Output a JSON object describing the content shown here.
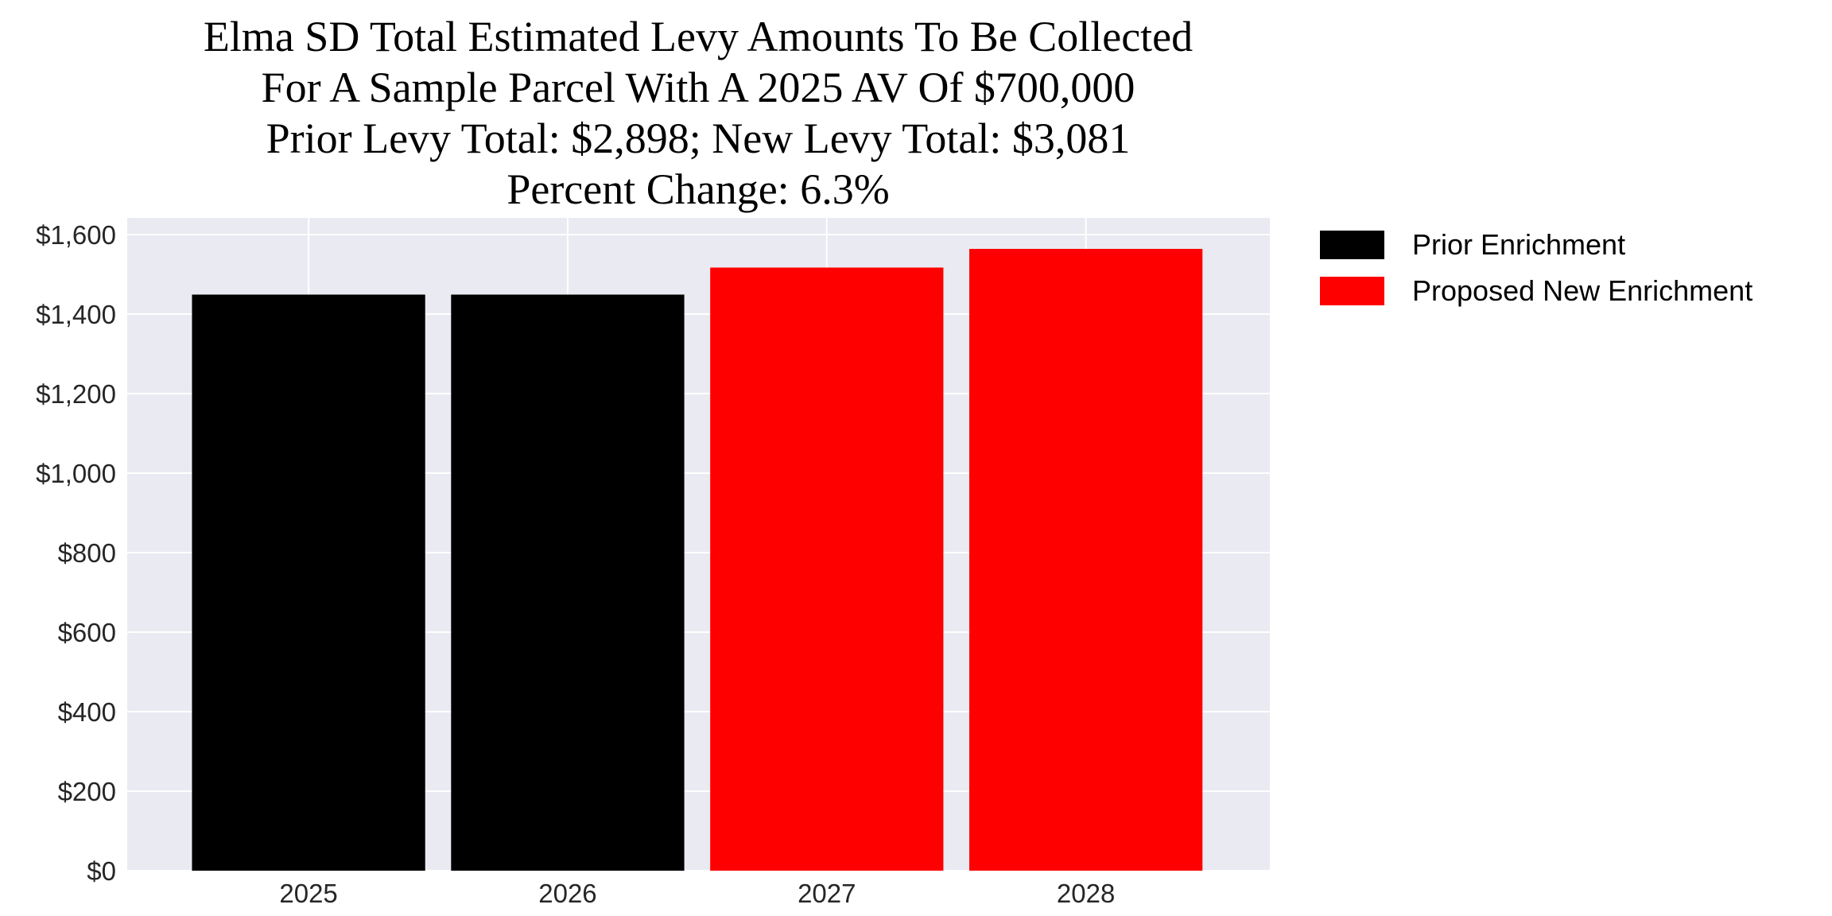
{
  "chart_data": {
    "type": "bar",
    "title_lines": [
      "Elma SD Total Estimated Levy Amounts To Be Collected",
      "For A Sample Parcel With A 2025 AV Of $700,000",
      "Prior Levy Total:  $2,898; New Levy Total: $3,081",
      "Percent Change: 6.3%"
    ],
    "categories": [
      "2025",
      "2026",
      "2027",
      "2028"
    ],
    "values": [
      1449,
      1449,
      1517,
      1564
    ],
    "bar_series": [
      "Prior Enrichment",
      "Prior Enrichment",
      "Proposed New Enrichment",
      "Proposed New Enrichment"
    ],
    "xlabel": "",
    "ylabel": "",
    "ylim": [
      0,
      1642
    ],
    "yticks": [
      0,
      200,
      400,
      600,
      800,
      1000,
      1200,
      1400,
      1600
    ],
    "ytick_labels": [
      "$0",
      "$200",
      "$400",
      "$600",
      "$800",
      "$1,000",
      "$1,200",
      "$1,400",
      "$1,600"
    ],
    "grid": true,
    "legend": {
      "placement": "outside-top-right",
      "entries": [
        {
          "name": "Prior Enrichment",
          "color": "#000000"
        },
        {
          "name": "Proposed New Enrichment",
          "color": "#ff0000"
        }
      ]
    },
    "colors": {
      "background": "#eaeaf2",
      "grid": "#ffffff",
      "prior": "#000000",
      "new": "#ff0000"
    }
  }
}
